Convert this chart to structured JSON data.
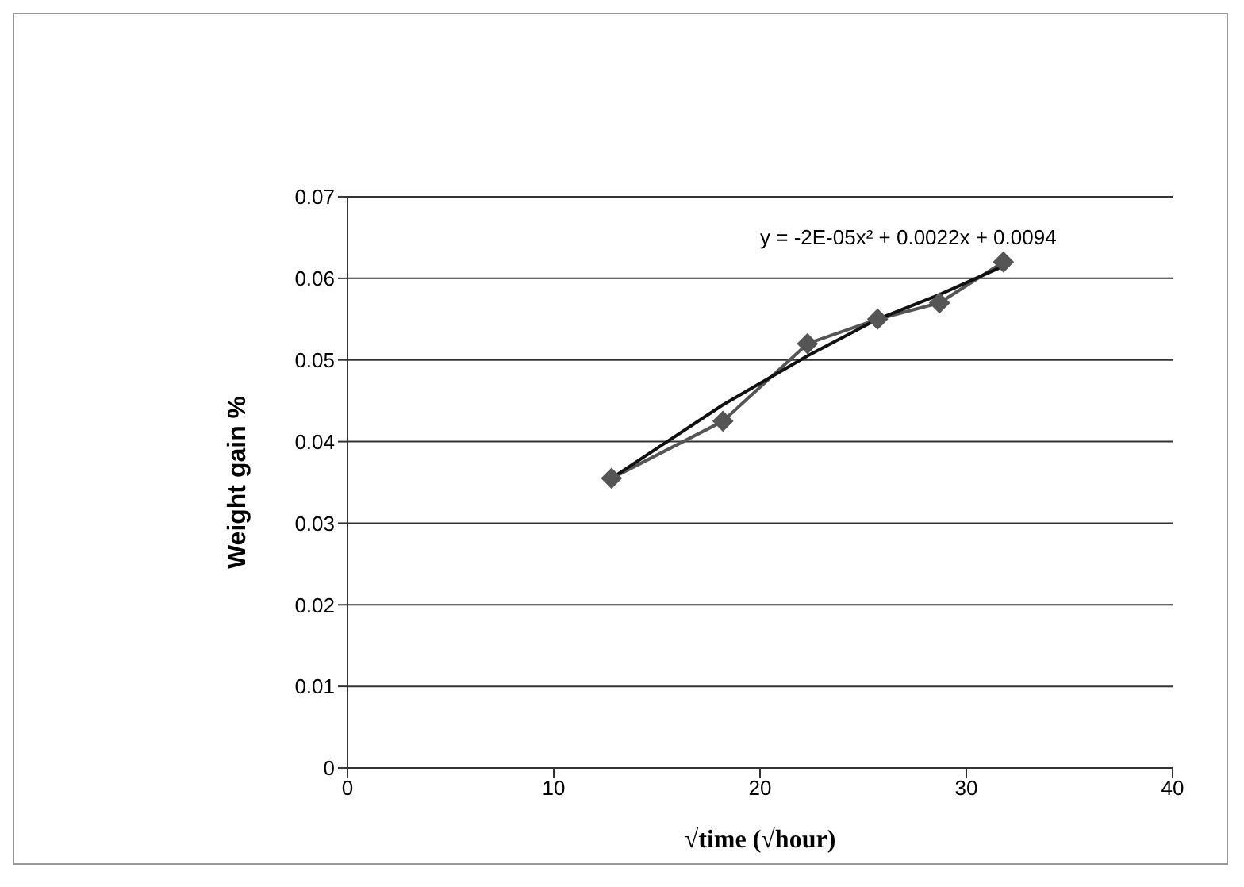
{
  "chart_data": {
    "type": "line",
    "xlabel": "√time (√hour)",
    "ylabel": "Weight gain %",
    "annotations": [
      "y = -2E-05x² + 0.0022x + 0.0094"
    ],
    "series": [
      {
        "color": "#555555",
        "marker": "diamond",
        "x": [
          12.8,
          18.2,
          22.3,
          25.7,
          28.7,
          31.8
        ],
        "values": [
          0.0355,
          0.0425,
          0.052,
          0.055,
          0.057,
          0.062
        ]
      },
      {
        "color": "#111111",
        "marker": "none",
        "x": [
          12.8,
          18.2,
          22.3,
          25.7,
          28.7,
          31.8
        ],
        "values": [
          0.0355,
          0.0445,
          0.0505,
          0.055,
          0.058,
          0.0615
        ]
      }
    ],
    "xlim": [
      0,
      40
    ],
    "xticks": [
      0,
      10,
      20,
      30,
      40
    ],
    "ylim": [
      0,
      0.07
    ],
    "yticks": [
      0,
      0.01,
      0.02,
      0.03,
      0.04,
      0.05,
      0.06,
      0.07
    ],
    "grid": "y"
  }
}
